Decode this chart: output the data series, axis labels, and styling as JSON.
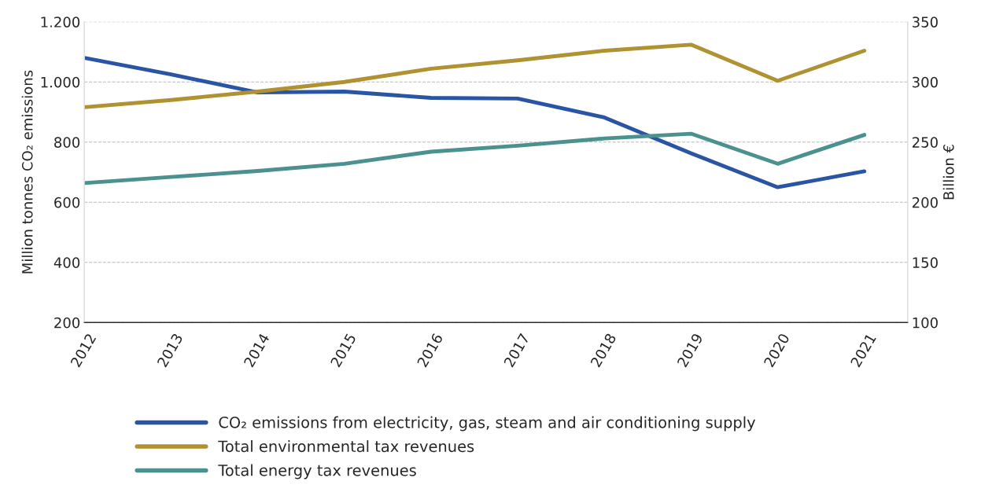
{
  "chart_data": {
    "type": "line",
    "categories": [
      "2012",
      "2013",
      "2014",
      "2015",
      "2016",
      "2017",
      "2018",
      "2019",
      "2020",
      "2021"
    ],
    "ylabel": "Million tonnes CO₂ emissions",
    "y2label": "Billion €",
    "ylim": [
      200,
      1200
    ],
    "yticks": [
      200,
      400,
      600,
      800,
      {
        "value": 1000,
        "label": "1.000"
      },
      {
        "value": 1200,
        "label": "1.200"
      }
    ],
    "y2lim": [
      100,
      350
    ],
    "y2ticks": [
      100,
      150,
      200,
      250,
      300,
      350
    ],
    "grid": "y",
    "legend": "bottom",
    "marker": "none",
    "line_style": "solid",
    "series": [
      {
        "name": "CO₂ emissions from electricity, gas, steam and air conditioning supply",
        "color": "#2a54a4",
        "values": [
          1080,
          1025,
          965,
          968,
          947,
          945,
          882,
          763,
          650,
          703
        ]
      },
      {
        "name": "Total environmental tax revenues",
        "color": "#b09232",
        "axis": "y2",
        "values": [
          279,
          285,
          292,
          300,
          311,
          318,
          326,
          331,
          301,
          326
        ]
      },
      {
        "name": "Total energy tax revenues",
        "color": "#4a9190",
        "axis": "y2",
        "values": [
          216,
          221,
          226,
          232,
          242,
          247,
          253,
          257,
          232,
          256
        ]
      }
    ]
  }
}
